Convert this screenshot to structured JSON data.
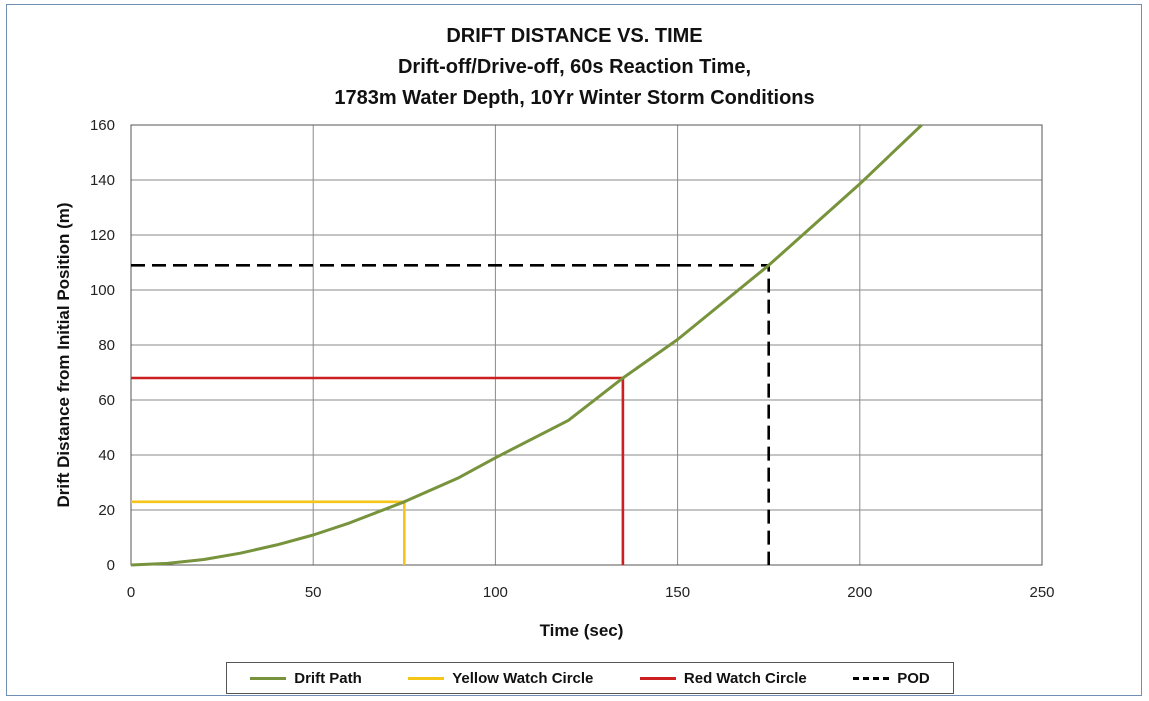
{
  "chart_data": {
    "type": "line",
    "title": "DRIFT DISTANCE VS. TIME",
    "subtitle_lines": [
      "Drift-off/Drive-off, 60s Reaction Time,",
      "1783m Water Depth, 10Yr Winter Storm Conditions"
    ],
    "xlabel": "Time (sec)",
    "ylabel": "Drift Distance from Initial Position (m)",
    "xlim": [
      0,
      250
    ],
    "ylim": [
      0,
      160
    ],
    "xticks": [
      0,
      50,
      100,
      150,
      200,
      250
    ],
    "yticks": [
      0,
      20,
      40,
      60,
      80,
      100,
      120,
      140,
      160
    ],
    "grid": true,
    "legend_position": "bottom",
    "series": [
      {
        "name": "Drift Path",
        "color": "#77933c",
        "style": "solid",
        "x": [
          0,
          10,
          20,
          30,
          40,
          50,
          60,
          75,
          90,
          100,
          120,
          135,
          150,
          175,
          200,
          217
        ],
        "y": [
          0,
          0.6,
          2.0,
          4.3,
          7.3,
          10.9,
          15.3,
          23,
          31.8,
          39,
          52.6,
          68,
          82,
          109,
          138.6,
          160
        ]
      },
      {
        "name": "Yellow Watch Circle",
        "color": "#f5c518",
        "style": "solid",
        "x": [
          0,
          75,
          75
        ],
        "y": [
          23,
          23,
          0
        ]
      },
      {
        "name": "Red Watch Circle",
        "color": "#cc1f1f",
        "style": "solid",
        "x": [
          0,
          135,
          135
        ],
        "y": [
          68,
          68,
          0
        ]
      },
      {
        "name": "POD",
        "color": "#000000",
        "style": "dashed",
        "x": [
          0,
          175,
          175
        ],
        "y": [
          109,
          109,
          0
        ]
      }
    ]
  }
}
